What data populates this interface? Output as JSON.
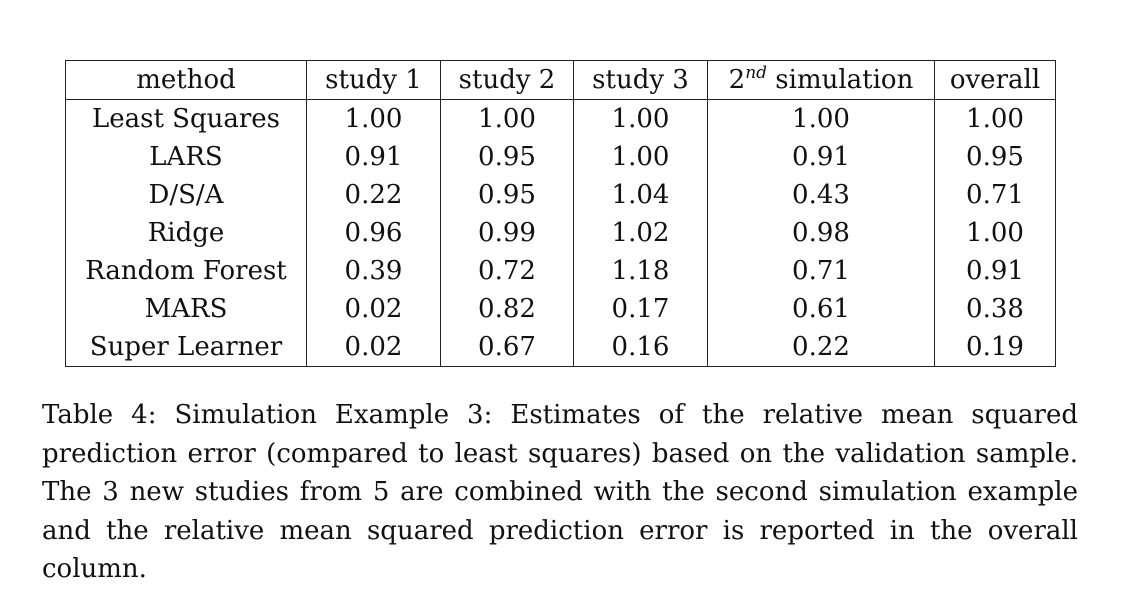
{
  "table": {
    "headers": {
      "method": "method",
      "study1": "study 1",
      "study2": "study 2",
      "study3": "study 3",
      "simulation_prefix": "2",
      "simulation_sup": "nd",
      "simulation_suffix": " simulation",
      "overall": "overall"
    },
    "rows": [
      {
        "method": "Least Squares",
        "study1": "1.00",
        "study2": "1.00",
        "study3": "1.00",
        "simulation": "1.00",
        "overall": "1.00"
      },
      {
        "method": "LARS",
        "study1": "0.91",
        "study2": "0.95",
        "study3": "1.00",
        "simulation": "0.91",
        "overall": "0.95"
      },
      {
        "method": "D/S/A",
        "study1": "0.22",
        "study2": "0.95",
        "study3": "1.04",
        "simulation": "0.43",
        "overall": "0.71"
      },
      {
        "method": "Ridge",
        "study1": "0.96",
        "study2": "0.99",
        "study3": "1.02",
        "simulation": "0.98",
        "overall": "1.00"
      },
      {
        "method": "Random Forest",
        "study1": "0.39",
        "study2": "0.72",
        "study3": "1.18",
        "simulation": "0.71",
        "overall": "0.91"
      },
      {
        "method": "MARS",
        "study1": "0.02",
        "study2": "0.82",
        "study3": "0.17",
        "simulation": "0.61",
        "overall": "0.38"
      },
      {
        "method": "Super Learner",
        "study1": "0.02",
        "study2": "0.67",
        "study3": "0.16",
        "simulation": "0.22",
        "overall": "0.19"
      }
    ]
  },
  "caption": "Table 4: Simulation Example 3: Estimates of the relative mean squared prediction error (compared to least squares) based on the validation sample. The 3 new studies from 5 are combined with the second simulation example and the relative mean squared prediction error is reported in the overall column."
}
